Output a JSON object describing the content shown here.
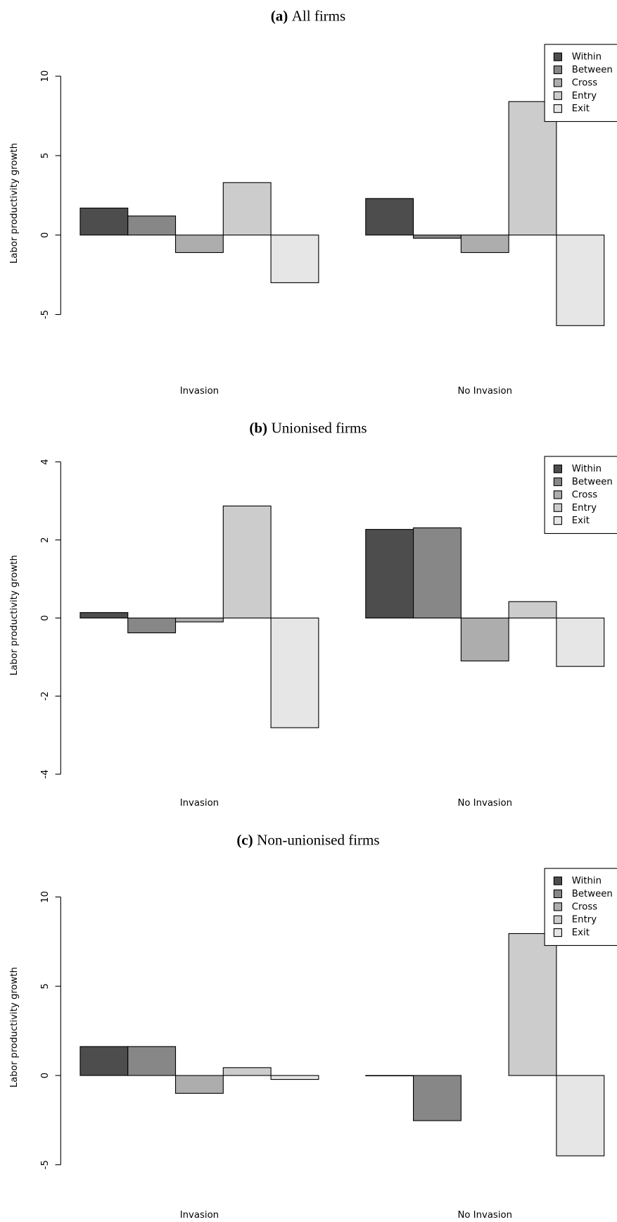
{
  "chart_data": [
    {
      "type": "bar",
      "panel": "(a)",
      "title": "All firms",
      "y_label": "Labor productivity growth",
      "categories": [
        "Invasion",
        "No Invasion"
      ],
      "series": [
        {
          "name": "Within",
          "color": "#4d4d4d",
          "values": [
            1.7,
            2.3
          ]
        },
        {
          "name": "Between",
          "color": "#878787",
          "values": [
            1.2,
            -0.2
          ]
        },
        {
          "name": "Cross",
          "color": "#adadad",
          "values": [
            -1.1,
            -1.1
          ]
        },
        {
          "name": "Entry",
          "color": "#cccccc",
          "values": [
            3.3,
            8.4
          ]
        },
        {
          "name": "Exit",
          "color": "#e6e6e6",
          "values": [
            -3.0,
            -5.7
          ]
        }
      ],
      "ylim": [
        -8,
        12
      ],
      "yticks": [
        -5,
        0,
        5,
        10
      ],
      "legend": "topright"
    },
    {
      "type": "bar",
      "panel": "(b)",
      "title": "Unionised firms",
      "y_label": "Labor productivity growth",
      "categories": [
        "Invasion",
        "No Invasion"
      ],
      "series": [
        {
          "name": "Within",
          "color": "#4d4d4d",
          "values": [
            0.14,
            2.27
          ]
        },
        {
          "name": "Between",
          "color": "#878787",
          "values": [
            -0.38,
            2.31
          ]
        },
        {
          "name": "Cross",
          "color": "#adadad",
          "values": [
            -0.1,
            -1.1
          ]
        },
        {
          "name": "Entry",
          "color": "#cccccc",
          "values": [
            2.87,
            0.42
          ]
        },
        {
          "name": "Exit",
          "color": "#e6e6e6",
          "values": [
            -2.81,
            -1.24
          ]
        }
      ],
      "ylim": [
        -4,
        4.14
      ],
      "yticks": [
        -4,
        -2,
        0,
        2,
        4
      ],
      "legend": "topright"
    },
    {
      "type": "bar",
      "panel": "(c)",
      "title": "Non-unionised firms",
      "y_label": "Labor productivity growth",
      "categories": [
        "Invasion",
        "No Invasion"
      ],
      "series": [
        {
          "name": "Within",
          "color": "#4d4d4d",
          "values": [
            1.62,
            -0.02
          ]
        },
        {
          "name": "Between",
          "color": "#878787",
          "values": [
            1.62,
            -2.53
          ]
        },
        {
          "name": "Cross",
          "color": "#adadad",
          "values": [
            -1.0,
            0
          ]
        },
        {
          "name": "Entry",
          "color": "#cccccc",
          "values": [
            0.44,
            7.95
          ]
        },
        {
          "name": "Exit",
          "color": "#e6e6e6",
          "values": [
            -0.22,
            -4.5
          ]
        }
      ],
      "ylim": [
        -6.2,
        11.6
      ],
      "yticks": [
        -5,
        0,
        5,
        10
      ],
      "legend": "topright"
    }
  ]
}
